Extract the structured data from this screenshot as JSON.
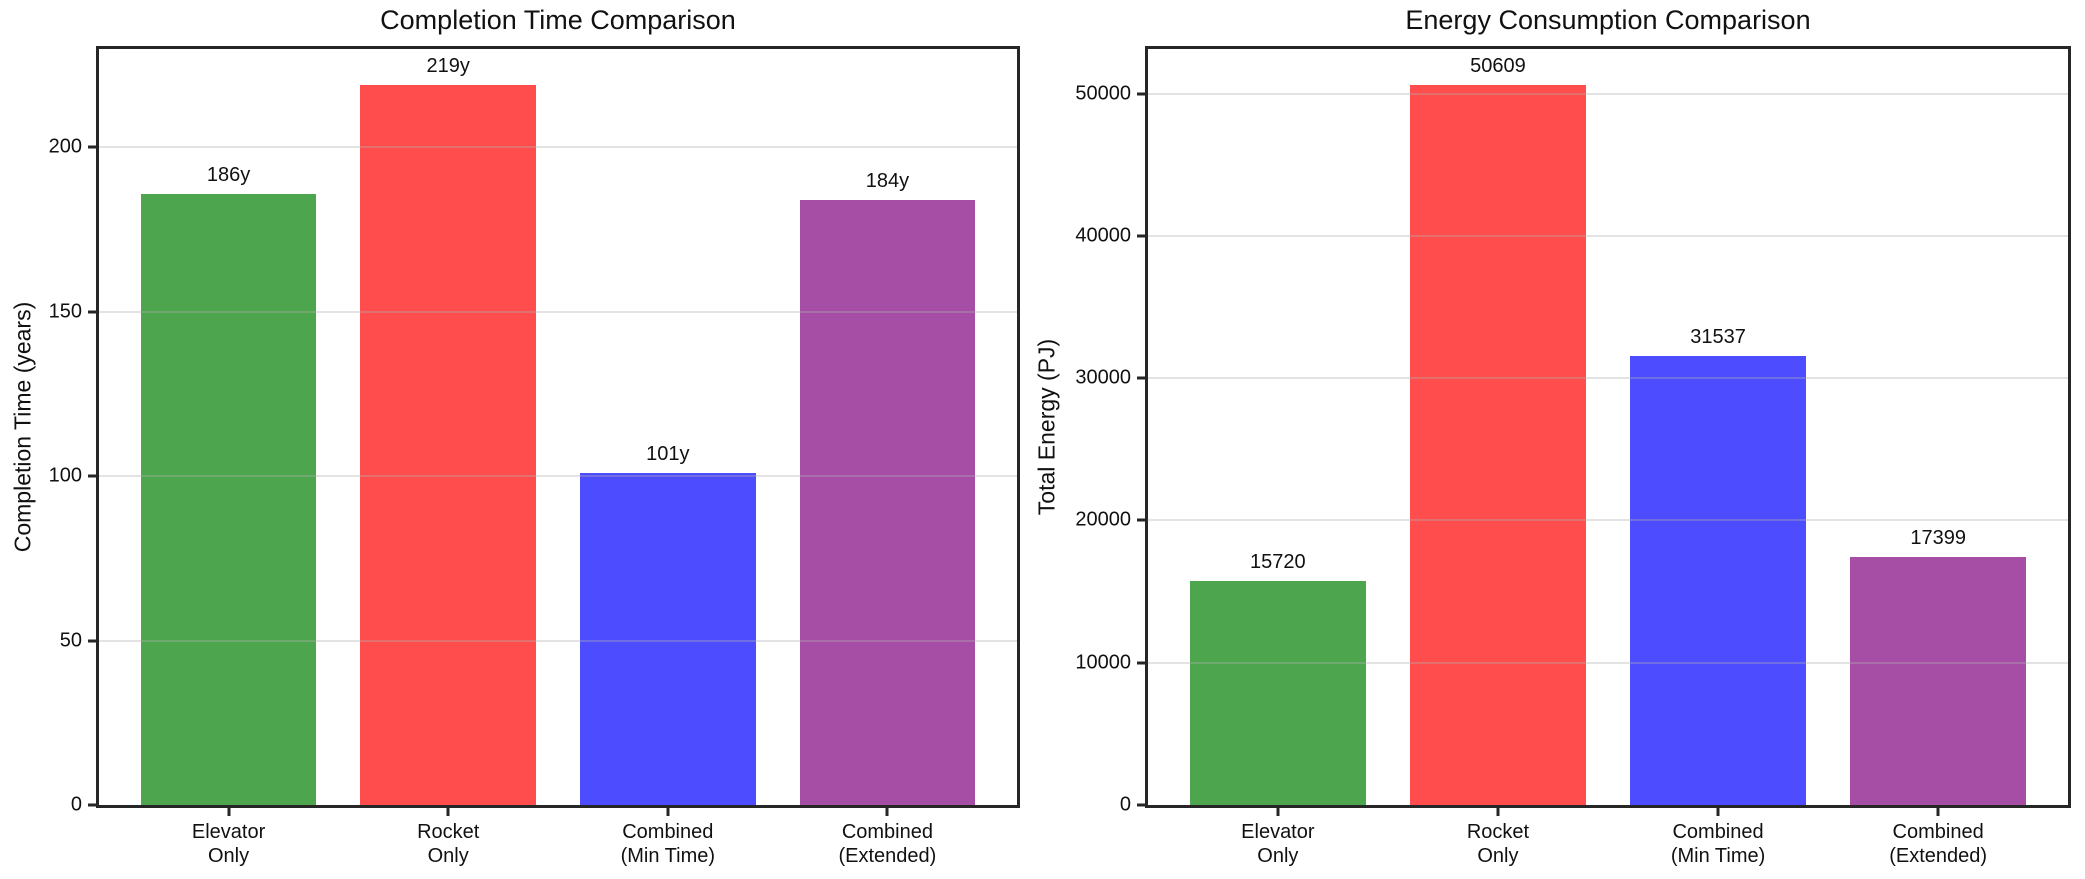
{
  "figure": {
    "background": "#ffffff",
    "spine_color": "#262626",
    "grid_color": "#e7e7e7",
    "text_color": "#111111"
  },
  "chart_data": [
    {
      "type": "bar",
      "title": "Completion Time Comparison",
      "xlabel": "",
      "ylabel": "Completion Time (years)",
      "categories": [
        [
          "Elevator",
          "Only"
        ],
        [
          "Rocket",
          "Only"
        ],
        [
          "Combined",
          "(Min Time)"
        ],
        [
          "Combined",
          "(Extended)"
        ]
      ],
      "values": [
        186,
        219,
        101,
        184
      ],
      "bar_labels": [
        "186y",
        "219y",
        "101y",
        "184y"
      ],
      "bar_colors": [
        "#4da64d",
        "#ff4d4d",
        "#4d4dff",
        "#a64da6"
      ],
      "yticks": [
        0,
        50,
        100,
        150,
        200
      ],
      "ylim": [
        0,
        229.95
      ],
      "xlim": [
        -0.59,
        3.59
      ],
      "bar_width": 0.8,
      "grid": true,
      "legend": false
    },
    {
      "type": "bar",
      "title": "Energy Consumption Comparison",
      "xlabel": "",
      "ylabel": "Total Energy (PJ)",
      "categories": [
        [
          "Elevator",
          "Only"
        ],
        [
          "Rocket",
          "Only"
        ],
        [
          "Combined",
          "(Min Time)"
        ],
        [
          "Combined",
          "(Extended)"
        ]
      ],
      "values": [
        15720,
        50609,
        31537,
        17399
      ],
      "bar_labels": [
        "15720",
        "50609",
        "31537",
        "17399"
      ],
      "bar_colors": [
        "#4da64d",
        "#ff4d4d",
        "#4d4dff",
        "#a64da6"
      ],
      "yticks": [
        0,
        10000,
        20000,
        30000,
        40000,
        50000
      ],
      "ylim": [
        0,
        53139.45
      ],
      "xlim": [
        -0.59,
        3.59
      ],
      "bar_width": 0.8,
      "grid": true,
      "legend": false
    }
  ]
}
